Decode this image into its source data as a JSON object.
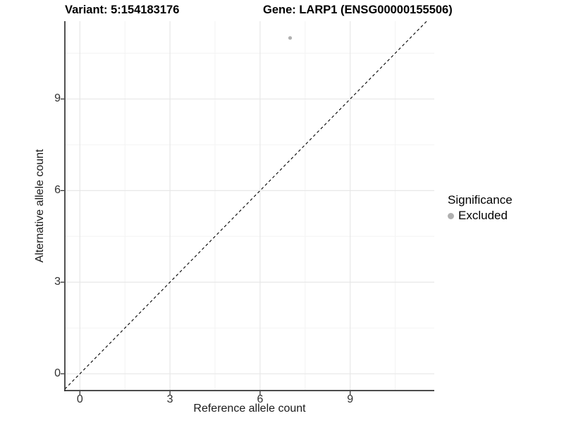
{
  "titles": {
    "variant": "Variant: 5:154183176",
    "gene": "Gene: LARP1 (ENSG00000155506)"
  },
  "chart_data": {
    "type": "scatter",
    "xlabel": "Reference allele count",
    "ylabel": "Alternative allele count",
    "xticks": [
      0,
      3,
      6,
      9
    ],
    "yticks": [
      0,
      3,
      6,
      9
    ],
    "minor_ticks": [
      1.5,
      4.5,
      7.5,
      10.5
    ],
    "xlim": [
      -0.5,
      11.8
    ],
    "ylim": [
      -0.55,
      11.55
    ],
    "grid": true,
    "points": [
      {
        "x": 7,
        "y": 11,
        "series": "Excluded"
      }
    ],
    "series": [
      {
        "name": "Excluded",
        "color": "#b0b0b0"
      }
    ],
    "reference_line": {
      "kind": "identity",
      "slope": 1,
      "intercept": 0,
      "style": "dashed",
      "color": "#000000"
    },
    "legend": {
      "position": "right",
      "title": "Significance",
      "items": [
        {
          "label": "Excluded",
          "color": "#b0b0b0"
        }
      ]
    },
    "colors": {
      "axis_line": "#333333",
      "tick_mark": "#333333",
      "major_grid": "#e7e7e7",
      "minor_grid": "#f3f3f3",
      "background": "#ffffff"
    }
  }
}
